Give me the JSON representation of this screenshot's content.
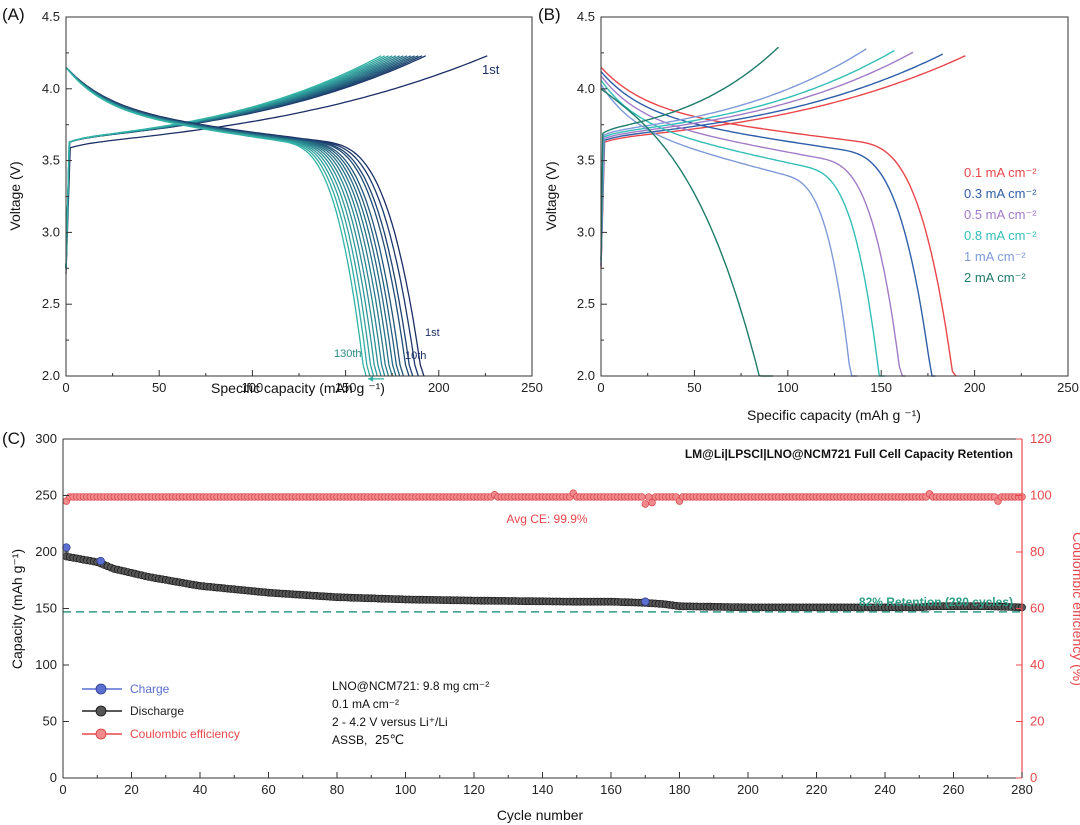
{
  "colors": {
    "axis": "#333333",
    "retention": "#2e9e86",
    "ce": "#e8474c",
    "charge": "#5a6fd0",
    "discharge": "#222222",
    "early_cycle": "#1b2f66",
    "late_cycle": "#33b3a6",
    "rate_colors": [
      "#e8474c",
      "#2f5fa8",
      "#a27bc7",
      "#33bfb8",
      "#7f9ad8",
      "#1e7c6a"
    ]
  },
  "chart_data": [
    {
      "id": "A",
      "panel_label": "(A)",
      "type": "line",
      "title": "",
      "xlabel": "Specific capacity (mAh g ⁻¹)",
      "ylabel": "Voltage (V)",
      "xlim": [
        0,
        250
      ],
      "ylim": [
        2.0,
        4.5
      ],
      "xticks": [
        "0",
        "50",
        "100",
        "150",
        "200",
        "250"
      ],
      "yticks": [
        "2.0",
        "2.5",
        "3.0",
        "3.5",
        "4.0",
        "4.5"
      ],
      "first_charge_capacity": 226,
      "charge_capacities": [
        226,
        193,
        191,
        189,
        187,
        185,
        183,
        181,
        179,
        177,
        175,
        173,
        171,
        169
      ],
      "discharge_capacities": [
        192,
        189,
        186,
        184,
        181,
        179,
        177,
        175,
        173,
        171,
        169,
        167,
        165,
        163,
        161
      ],
      "labels": {
        "first_charge": "1st",
        "d_first": "1st",
        "d_tenth": "10th",
        "d_last": "130th"
      }
    },
    {
      "id": "B",
      "panel_label": "(B)",
      "type": "line",
      "title": "",
      "xlabel": "Specific capacity (mAh g ⁻¹)",
      "ylabel": "Voltage (V)",
      "xlim": [
        0,
        250
      ],
      "ylim": [
        2.0,
        4.5
      ],
      "xticks": [
        "0",
        "50",
        "100",
        "150",
        "200",
        "250"
      ],
      "yticks": [
        "2.0",
        "2.5",
        "3.0",
        "3.5",
        "4.0",
        "4.5"
      ],
      "series": [
        {
          "name": "0.1 mA cm⁻²",
          "charge_capacity": 195,
          "discharge_capacity": 190
        },
        {
          "name": "0.3 mA cm⁻²",
          "charge_capacity": 183,
          "discharge_capacity": 179
        },
        {
          "name": "0.5 mA cm⁻²",
          "charge_capacity": 167,
          "discharge_capacity": 163
        },
        {
          "name": "0.8 mA cm⁻²",
          "charge_capacity": 157,
          "discharge_capacity": 152
        },
        {
          "name": "1 mA cm⁻²",
          "charge_capacity": 142,
          "discharge_capacity": 137
        },
        {
          "name": "2 mA cm⁻²",
          "charge_capacity": 95,
          "discharge_capacity": 92
        }
      ]
    },
    {
      "id": "C",
      "panel_label": "(C)",
      "type": "scatter",
      "title": "LM@Li|LPSCl|LNO@NCM721 Full Cell Capacity Retention",
      "xlabel": "Cycle number",
      "ylabel": "Capacity (mAh g⁻¹)",
      "y2label": "Coulombic efficiency (%)",
      "xlim": [
        0,
        280
      ],
      "ylim": [
        0,
        300
      ],
      "y2lim": [
        0,
        120
      ],
      "xticks": [
        "0",
        "20",
        "40",
        "60",
        "80",
        "100",
        "120",
        "140",
        "160",
        "180",
        "200",
        "220",
        "240",
        "260",
        "280"
      ],
      "yticks": [
        "0",
        "50",
        "100",
        "150",
        "200",
        "250",
        "300"
      ],
      "y2ticks": [
        "0",
        "20",
        "40",
        "60",
        "80",
        "100",
        "120"
      ],
      "discharge_keypoints": [
        [
          1,
          196
        ],
        [
          10,
          191
        ],
        [
          15,
          185
        ],
        [
          25,
          178
        ],
        [
          40,
          170
        ],
        [
          60,
          164
        ],
        [
          80,
          160
        ],
        [
          100,
          158
        ],
        [
          120,
          157
        ],
        [
          150,
          156
        ],
        [
          160,
          156
        ],
        [
          170,
          155
        ],
        [
          175,
          154
        ],
        [
          180,
          152
        ],
        [
          200,
          151
        ],
        [
          250,
          151
        ],
        [
          254,
          152
        ],
        [
          270,
          152
        ],
        [
          280,
          151
        ]
      ],
      "charge_keypoints": [
        [
          1,
          204
        ],
        [
          11,
          192
        ],
        [
          170,
          156
        ]
      ],
      "ce_baseline": 99.5,
      "ce_dips": [
        [
          1,
          98
        ],
        [
          170,
          97
        ],
        [
          172,
          97.5
        ],
        [
          180,
          98
        ],
        [
          273,
          98
        ]
      ],
      "ce_bumps": [
        [
          126,
          100.3
        ],
        [
          149,
          100.8
        ],
        [
          253,
          100.6
        ]
      ],
      "retention_line_y": 147,
      "annotations": {
        "avg_ce": "Avg CE: 99.9%",
        "retention": "82% Retention (280 cycles)",
        "loading": "LNO@NCM721: 9.8 mg cm⁻²",
        "current": "0.1 mA cm⁻²",
        "voltage_window": "2 - 4.2 V versus Li⁺/Li",
        "cell_type": "ASSB,",
        "temperature": "25℃"
      },
      "legend": [
        "Charge",
        "Discharge",
        "Coulombic efficiency"
      ]
    }
  ]
}
